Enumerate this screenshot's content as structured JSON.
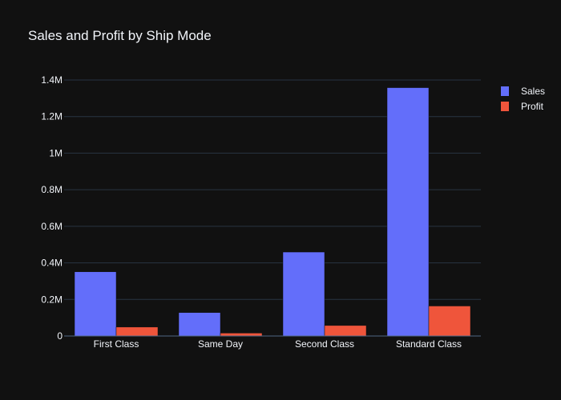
{
  "chart_data": {
    "type": "bar",
    "title": "Sales and Profit by Ship Mode",
    "xlabel": "",
    "ylabel": "",
    "categories": [
      "First Class",
      "Same Day",
      "Second Class",
      "Standard Class"
    ],
    "series": [
      {
        "name": "Sales",
        "color": "#636efa",
        "values": [
          351428,
          128363,
          459194,
          1358216
        ]
      },
      {
        "name": "Profit",
        "color": "#ef553b",
        "values": [
          48970,
          15892,
          57447,
          164089
        ]
      }
    ],
    "ylim": [
      0,
      1400000
    ],
    "yticks": [
      0,
      200000,
      400000,
      600000,
      800000,
      1000000,
      1200000,
      1400000
    ],
    "ytick_labels": [
      "0",
      "0.2M",
      "0.4M",
      "0.6M",
      "0.8M",
      "1M",
      "1.2M",
      "1.4M"
    ],
    "grid": true,
    "legend_position": "top-right",
    "bar_mode": "group"
  }
}
